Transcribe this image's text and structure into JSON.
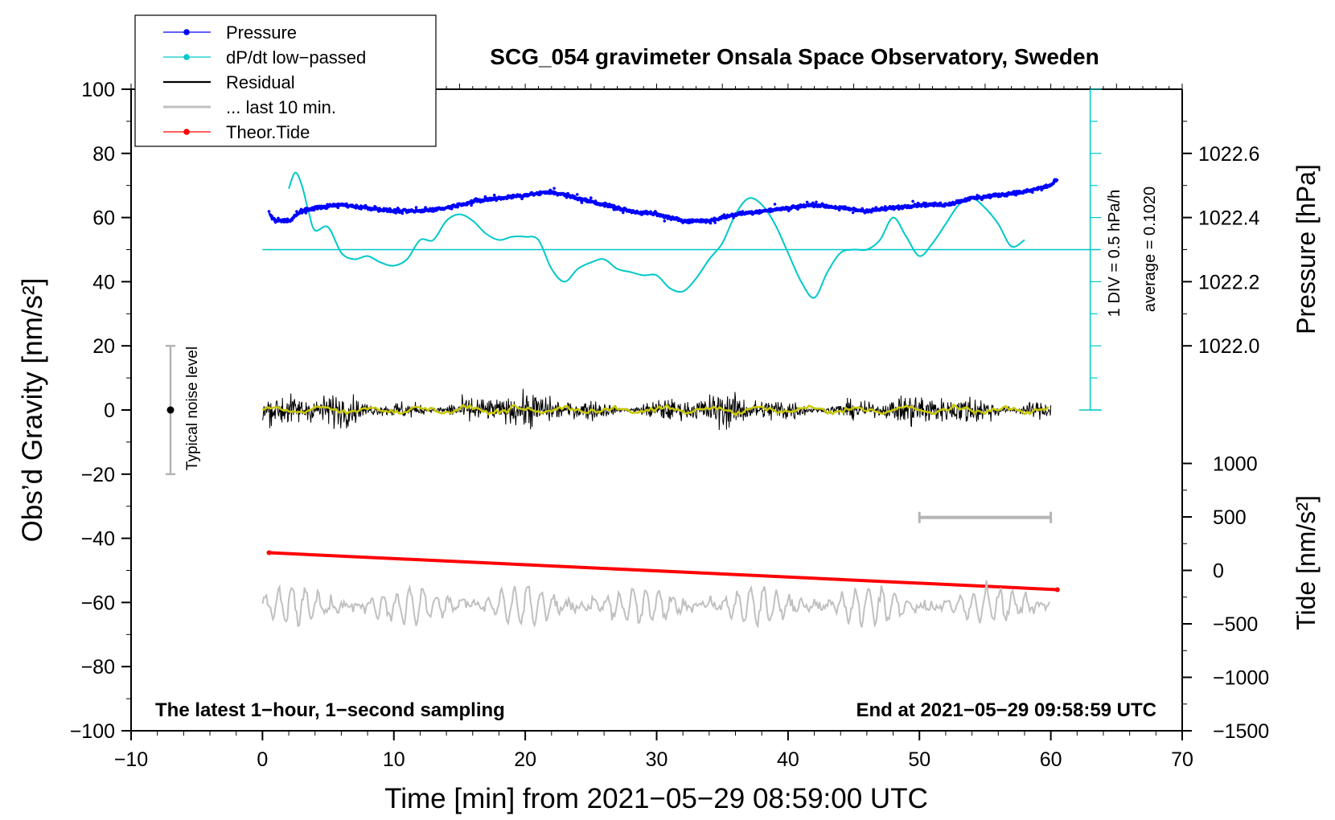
{
  "chart_data": {
    "type": "line",
    "title": "SCG_054 gravimeter Onsala Space Observatory, Sweden",
    "xlabel": "Time [min] from 2021−05−29 08:59:00 UTC",
    "ylabel_left": "Obs’d Gravity [nm/s²]",
    "ylabel_pressure": "Pressure [hPa]",
    "ylabel_tide": "Tide [nm/s²]",
    "xlim": [
      -10,
      70
    ],
    "ylim": [
      -100,
      100
    ],
    "x_ticks": [
      "−10",
      "0",
      "10",
      "20",
      "30",
      "40",
      "50",
      "60",
      "70"
    ],
    "y_ticks": [
      "100",
      "80",
      "60",
      "40",
      "20",
      "0",
      "−20",
      "−40",
      "−60",
      "−80",
      "−100"
    ],
    "pressure_axis": {
      "ticks": [
        "1022.6",
        "1022.4",
        "1022.2",
        "1022.0"
      ],
      "values": [
        1022.6,
        1022.4,
        1022.2,
        1022.0
      ],
      "scale_note": "1 DIV = 0.5 hPa/h",
      "average_note": "average = 0.1020"
    },
    "tide_axis": {
      "ticks": [
        "1000",
        "500",
        "0",
        "−500",
        "−1000",
        "−1500"
      ],
      "values": [
        1000,
        500,
        0,
        -500,
        -1000,
        -1500
      ]
    },
    "legend": {
      "position": "top-left",
      "entries": [
        {
          "label": "Pressure",
          "color": "#0000ff",
          "marker": true
        },
        {
          "label": "dP/dt low−passed",
          "color": "#00c8c8",
          "marker": true
        },
        {
          "label": "Residual",
          "color": "#000000",
          "marker": false
        },
        {
          "label": "... last 10 min.",
          "color": "#c0c0c0",
          "marker": false
        },
        {
          "label": "Theor.Tide",
          "color": "#ff0000",
          "marker": true
        }
      ]
    },
    "noise_bar": {
      "label": "Typical noise level",
      "x": -7,
      "y": 0,
      "range": [
        -20,
        20
      ]
    },
    "footer_left": "The latest 1−hour, 1−second sampling",
    "footer_right": "End at 2021−05−29 09:58:59 UTC",
    "series": [
      {
        "name": "Pressure",
        "color": "#0000ff",
        "axis": "pressure",
        "x": [
          0.5,
          1,
          2,
          3,
          4,
          6,
          8,
          10,
          12,
          14,
          16,
          18,
          20,
          22,
          23,
          25,
          28,
          30,
          32,
          34,
          36,
          38,
          40,
          42,
          44,
          46,
          48,
          50,
          52,
          54,
          56,
          58,
          60,
          60.5
        ],
        "y": [
          1022.41,
          1022.39,
          1022.39,
          1022.42,
          1022.43,
          1022.44,
          1022.43,
          1022.42,
          1022.42,
          1022.43,
          1022.45,
          1022.46,
          1022.47,
          1022.48,
          1022.47,
          1022.45,
          1022.42,
          1022.41,
          1022.39,
          1022.39,
          1022.41,
          1022.42,
          1022.43,
          1022.44,
          1022.43,
          1022.42,
          1022.43,
          1022.44,
          1022.44,
          1022.46,
          1022.47,
          1022.48,
          1022.5,
          1022.52
        ]
      },
      {
        "name": "dP/dt low−passed",
        "color": "#00c8c8",
        "axis": "left",
        "x": [
          2,
          2.5,
          3,
          3.5,
          4,
          5,
          6,
          7,
          8,
          9,
          10,
          11,
          12,
          13,
          14,
          15,
          16,
          17,
          18,
          19,
          20,
          21,
          22,
          23,
          24,
          25,
          26,
          27,
          28,
          29,
          30,
          31,
          32,
          33,
          34,
          35,
          36,
          37,
          38,
          39,
          40,
          41,
          42,
          43,
          44,
          45,
          46,
          47,
          48,
          49,
          50,
          51,
          52,
          53,
          54,
          55,
          56,
          57,
          58
        ],
        "y": [
          69,
          74,
          70,
          62,
          56,
          57,
          49,
          47,
          48,
          46,
          45,
          47,
          53,
          53,
          59,
          61,
          59,
          55,
          53,
          54,
          54,
          53,
          44,
          40,
          44,
          46,
          47,
          44,
          43,
          42,
          42,
          38,
          37,
          41,
          47,
          52,
          61,
          66,
          64,
          58,
          49,
          40,
          35,
          43,
          49,
          50,
          50,
          53,
          60,
          54,
          48,
          52,
          58,
          64,
          66,
          63,
          58,
          51,
          53
        ]
      },
      {
        "name": "Residual",
        "color": "#000000",
        "axis": "left",
        "x_range": [
          0,
          60
        ],
        "y_mean": 0,
        "typical_amplitude": 8
      },
      {
        "name": "Residual smoothed",
        "color": "#c8c800",
        "axis": "left",
        "x_range": [
          0,
          60
        ],
        "y_mean": 0,
        "typical_amplitude": 1.5
      },
      {
        "name": "... last 10 min.",
        "color": "#c0c0c0",
        "axis": "left",
        "x_range": [
          0,
          60
        ],
        "y_mean": -61,
        "typical_amplitude": 5,
        "time_bar": [
          50,
          60
        ]
      },
      {
        "name": "Theor.Tide",
        "color": "#ff0000",
        "axis": "tide",
        "x": [
          0.5,
          60.5
        ],
        "y": [
          165,
          -180
        ]
      }
    ]
  }
}
